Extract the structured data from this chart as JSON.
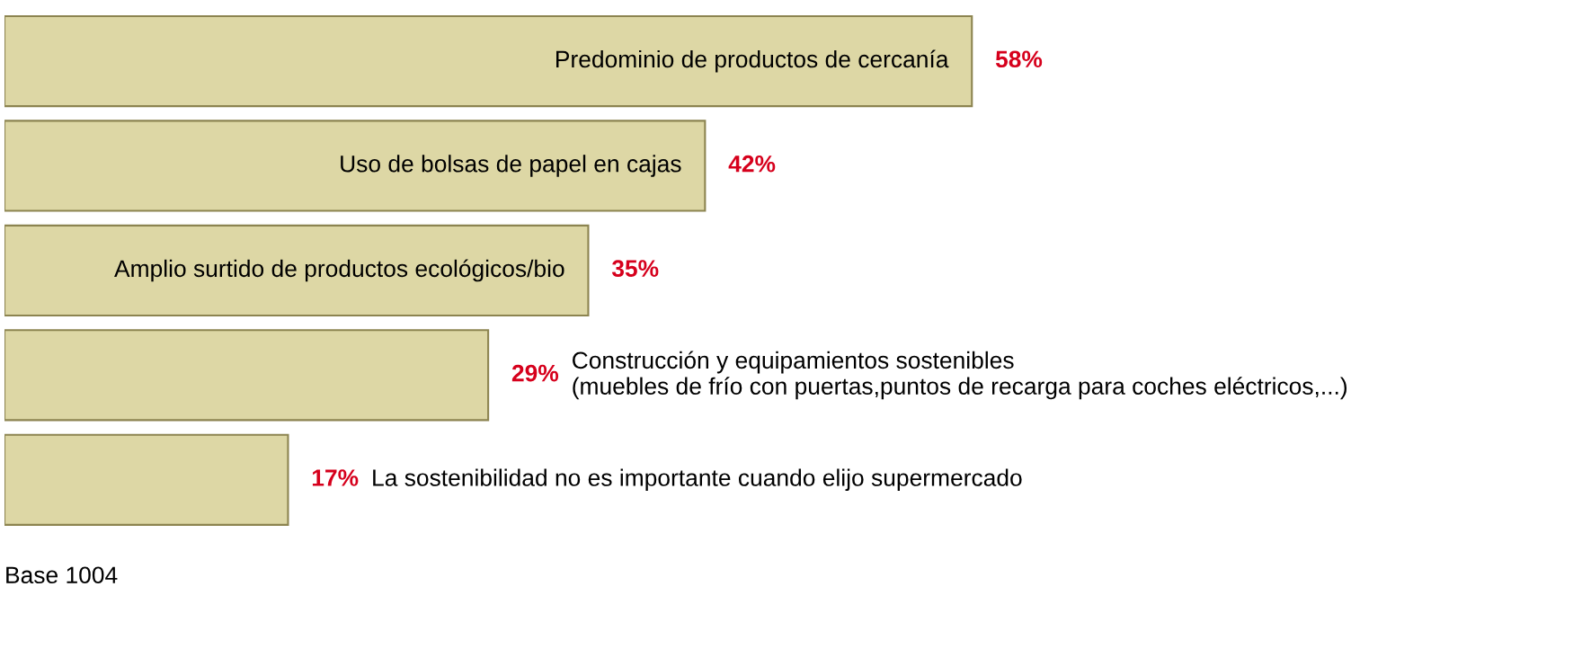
{
  "chart_data": {
    "type": "bar",
    "orientation": "horizontal",
    "categories": [
      "Predominio de productos de cercanía",
      "Uso de bolsas de papel en cajas",
      "Amplio surtido de productos ecológicos/bio",
      "Construcción y equipamientos sostenibles\n(muebles de frío con puertas,puntos de recarga para coches eléctricos,...)",
      "La sostenibilidad no es importante cuando elijo supermercado"
    ],
    "values": [
      58,
      42,
      35,
      29,
      17
    ],
    "value_labels": [
      "58%",
      "42%",
      "35%",
      "29%",
      "17%"
    ],
    "color": "#ddd7a5",
    "annotations": [
      "Base 1004"
    ]
  }
}
